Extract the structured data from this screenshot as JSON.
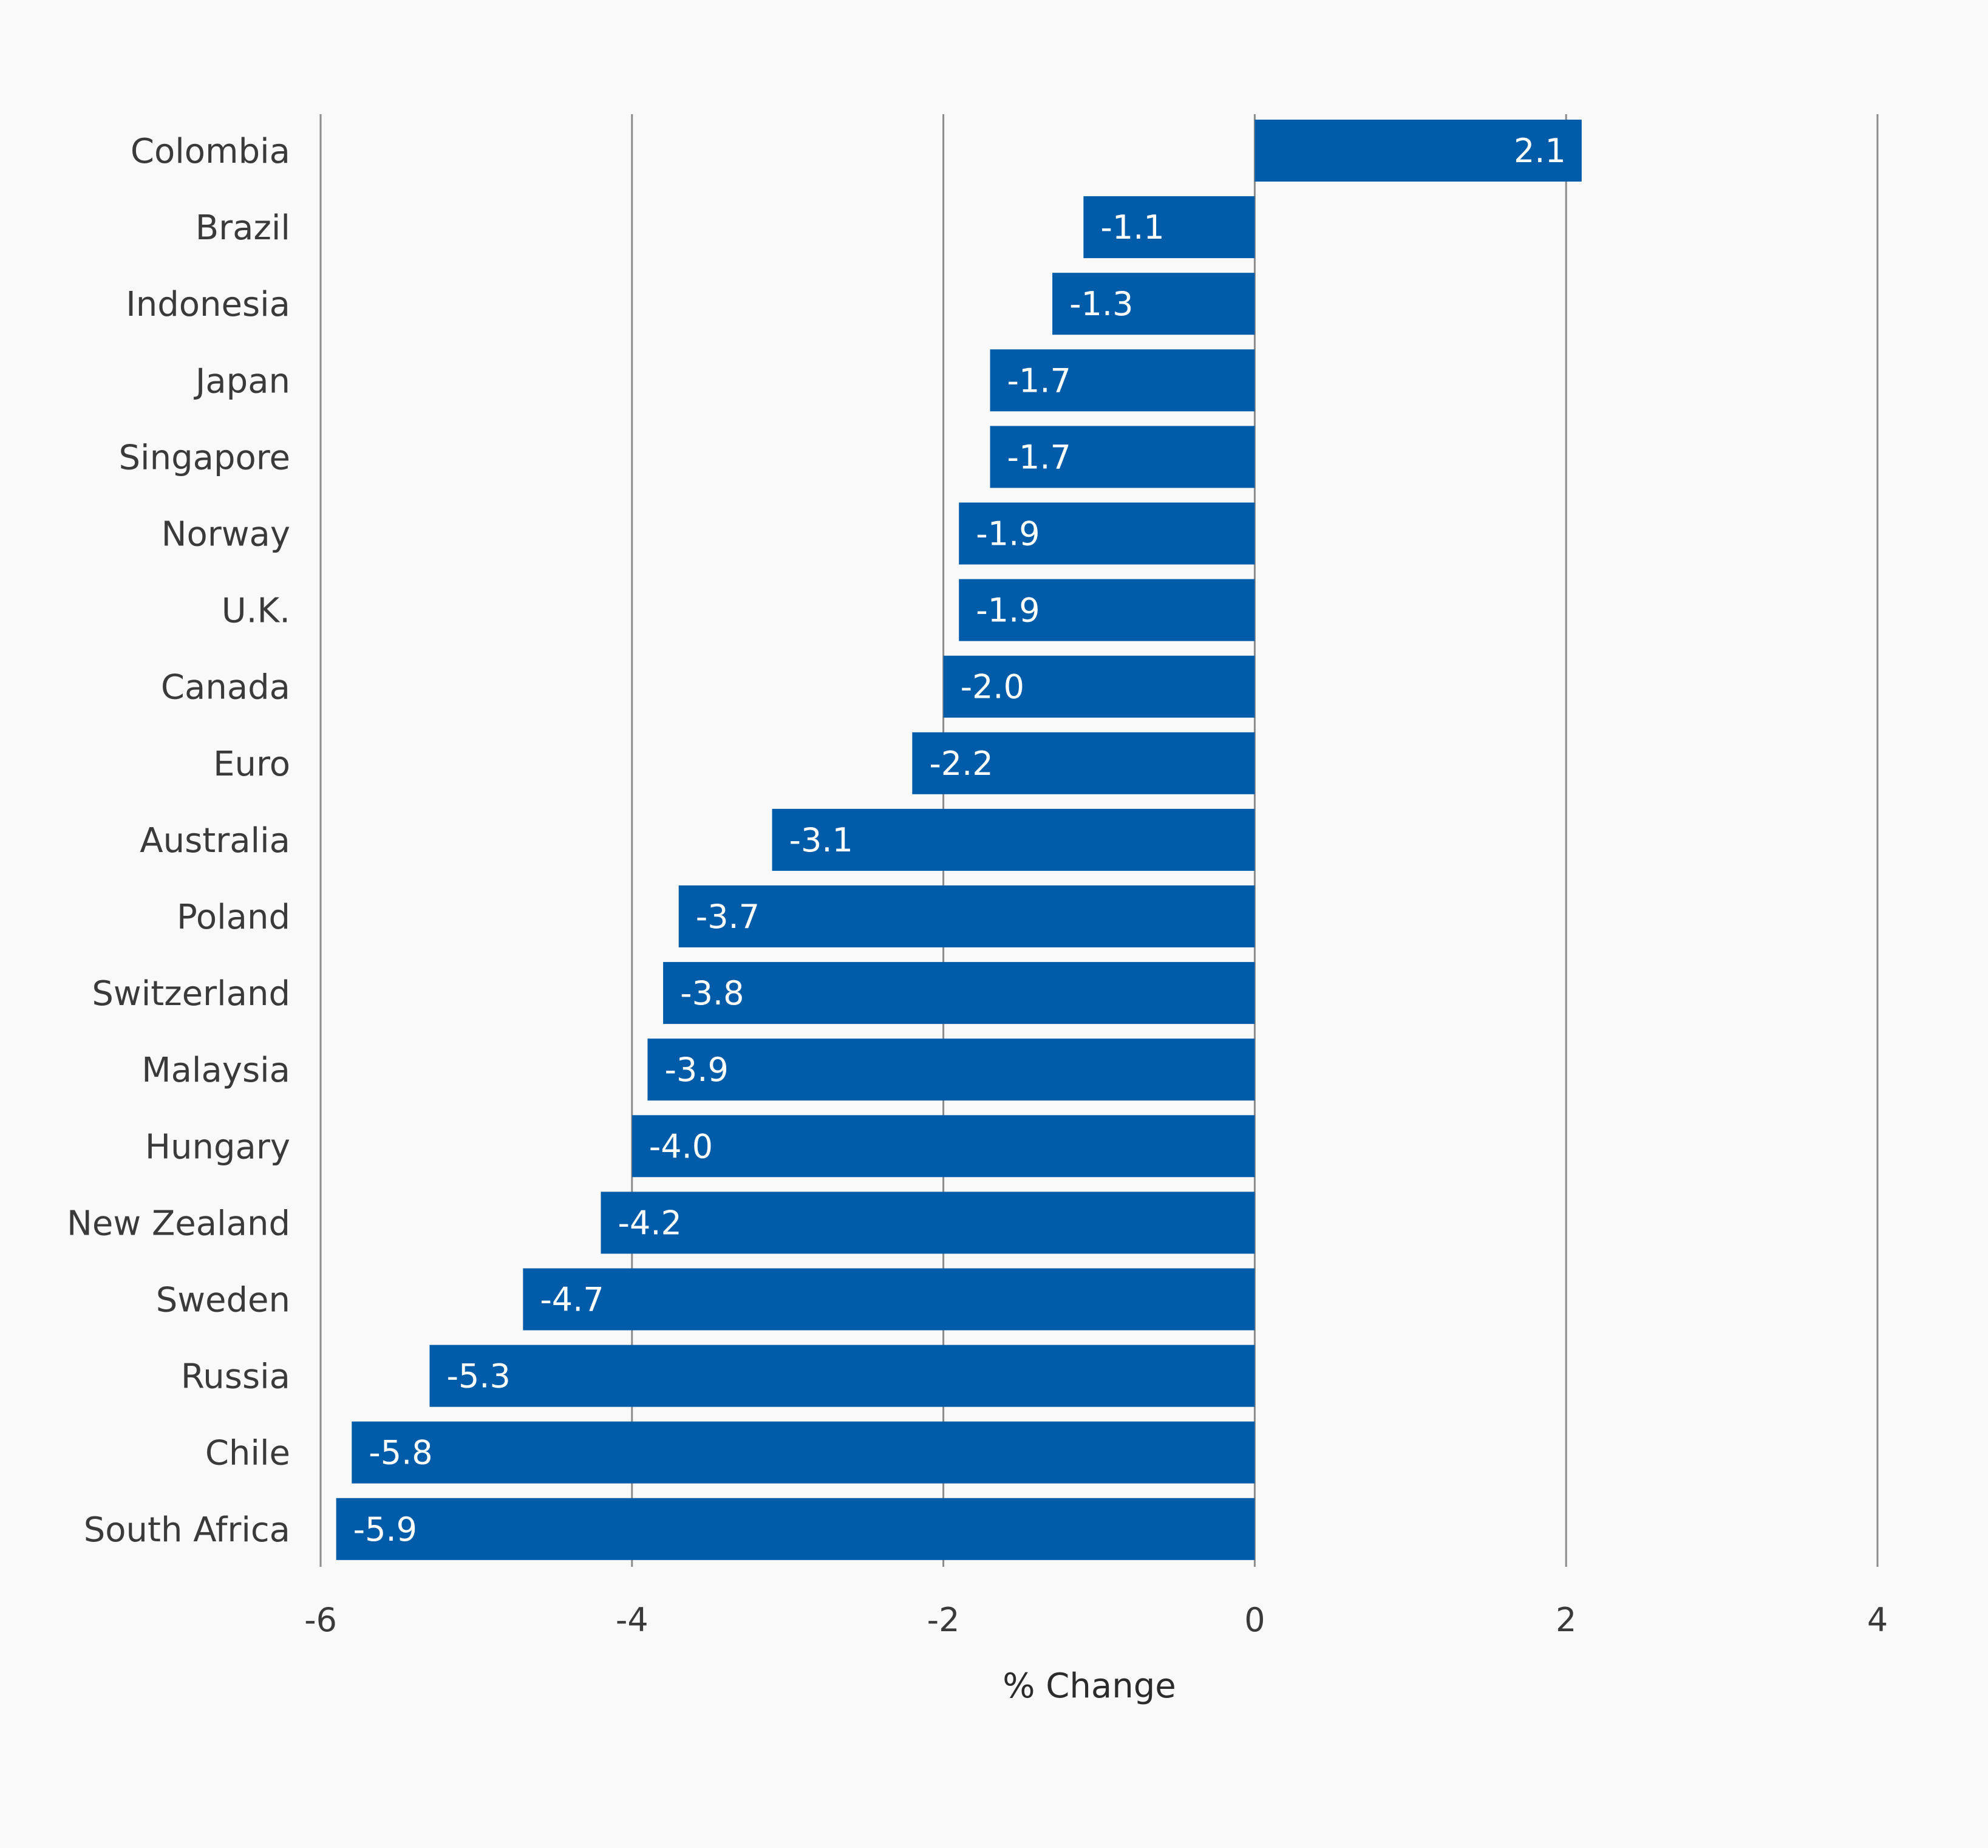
{
  "chart_data": {
    "type": "bar",
    "orientation": "horizontal",
    "categories": [
      "Colombia",
      "Brazil",
      "Indonesia",
      "Japan",
      "Singapore",
      "Norway",
      "U.K.",
      "Canada",
      "Euro",
      "Australia",
      "Poland",
      "Switzerland",
      "Malaysia",
      "Hungary",
      "New Zealand",
      "Sweden",
      "Russia",
      "Chile",
      "South Africa"
    ],
    "values": [
      2.1,
      -1.1,
      -1.3,
      -1.7,
      -1.7,
      -1.9,
      -1.9,
      -2.0,
      -2.2,
      -3.1,
      -3.7,
      -3.8,
      -3.9,
      -4.0,
      -4.2,
      -4.7,
      -5.3,
      -5.8,
      -5.9
    ],
    "value_labels": [
      "2.1",
      "-1.1",
      "-1.3",
      "-1.7",
      "-1.7",
      "-1.9",
      "-1.9",
      "-2.0",
      "-2.2",
      "-3.1",
      "-3.7",
      "-3.8",
      "-3.9",
      "-4.0",
      "-4.2",
      "-4.7",
      "-5.3",
      "-5.8",
      "-5.9"
    ],
    "xlabel": "% Change",
    "ylabel": "",
    "xlim": [
      -6,
      4
    ],
    "xticks": [
      -6,
      -4,
      -2,
      0,
      2,
      4
    ],
    "xtick_labels": [
      "-6",
      "-4",
      "-2",
      "0",
      "2",
      "4"
    ],
    "grid": true,
    "bar_color": "#005ba8"
  }
}
